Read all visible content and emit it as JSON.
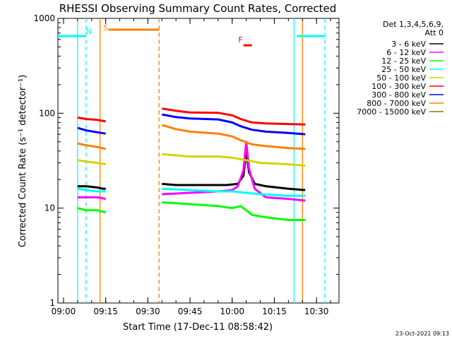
{
  "chart_data": {
    "type": "line",
    "title": "RHESSI Observing Summary Count Rates, Corrected",
    "xlabel": "Start Time (17-Dec-11 08:58:42)",
    "ylabel": "Corrected Count Rate (s⁻¹ detector⁻¹)",
    "yscale": "log",
    "xlim": [
      "08:58",
      "10:38"
    ],
    "ylim": [
      1,
      1000
    ],
    "x_ticks": [
      "09:00",
      "09:15",
      "09:30",
      "09:45",
      "10:00",
      "10:15",
      "10:30"
    ],
    "y_ticks": [
      {
        "value": 1,
        "label": "1"
      },
      {
        "value": 10,
        "label": "10"
      },
      {
        "value": 100,
        "label": "100"
      },
      {
        "value": 1000,
        "label": "1000"
      }
    ],
    "legend_header": [
      "Det 1,3,4,5,6,9,",
      "Att 0"
    ],
    "legend_position": "right",
    "series": [
      {
        "name": "3 - 6 keV",
        "color": "#000000",
        "segments": [
          {
            "x": [
              "09:05",
              "09:08",
              "09:12",
              "09:14",
              "09:15"
            ],
            "y": [
              17,
              17,
              16.5,
              16,
              16
            ]
          },
          {
            "x": [
              "09:35",
              "09:40",
              "09:50",
              "09:58",
              "10:02",
              "10:04",
              "10:05",
              "10:06",
              "10:08",
              "10:12",
              "10:20",
              "10:26"
            ],
            "y": [
              18,
              17.5,
              17.5,
              17.5,
              18,
              22,
              40,
              24,
              18,
              17,
              16,
              15.5
            ]
          }
        ]
      },
      {
        "name": "6 - 12 keV",
        "color": "#ff00ff",
        "segments": [
          {
            "x": [
              "09:05",
              "09:08",
              "09:12",
              "09:15"
            ],
            "y": [
              13,
              13,
              13,
              12.5
            ]
          },
          {
            "x": [
              "09:35",
              "09:45",
              "09:55",
              "10:00",
              "10:02",
              "10:04",
              "10:05",
              "10:06",
              "10:08",
              "10:12",
              "10:20",
              "10:26"
            ],
            "y": [
              14,
              14.5,
              15,
              15.5,
              17,
              25,
              50,
              26,
              16,
              13,
              12.5,
              12
            ]
          }
        ]
      },
      {
        "name": "12 - 25 keV",
        "color": "#00ff00",
        "segments": [
          {
            "x": [
              "09:05",
              "09:08",
              "09:12",
              "09:15"
            ],
            "y": [
              10,
              9.5,
              9.5,
              9
            ]
          },
          {
            "x": [
              "09:35",
              "09:45",
              "09:55",
              "10:00",
              "10:03",
              "10:05",
              "10:07",
              "10:12",
              "10:20",
              "10:26"
            ],
            "y": [
              11.5,
              11,
              10.5,
              10,
              10.5,
              9.5,
              8.5,
              8,
              7.5,
              7.5
            ]
          }
        ]
      },
      {
        "name": "25 - 50 keV",
        "color": "#00ffff",
        "segments": [
          {
            "x": [
              "09:05",
              "09:08",
              "09:12",
              "09:15"
            ],
            "y": [
              16,
              15.5,
              15,
              15
            ]
          },
          {
            "x": [
              "09:35",
              "09:45",
              "09:55",
              "10:00",
              "10:05",
              "10:10",
              "10:20",
              "10:26"
            ],
            "y": [
              16,
              15.5,
              15,
              15,
              14.5,
              14,
              13.5,
              13.5
            ]
          }
        ]
      },
      {
        "name": "50 - 100 keV",
        "color": "#d4d400",
        "segments": [
          {
            "x": [
              "09:05",
              "09:08",
              "09:12",
              "09:15"
            ],
            "y": [
              32,
              31,
              30,
              29
            ]
          },
          {
            "x": [
              "09:35",
              "09:45",
              "09:55",
              "10:00",
              "10:05",
              "10:10",
              "10:20",
              "10:26"
            ],
            "y": [
              37,
              35,
              35,
              34,
              32,
              30,
              29,
              28
            ]
          }
        ]
      },
      {
        "name": "100 - 300 keV",
        "color": "#ff0000",
        "segments": [
          {
            "x": [
              "09:05",
              "09:08",
              "09:12",
              "09:15"
            ],
            "y": [
              90,
              87,
              85,
              82
            ]
          },
          {
            "x": [
              "09:35",
              "09:40",
              "09:45",
              "09:55",
              "10:00",
              "10:03",
              "10:07",
              "10:12",
              "10:20",
              "10:26"
            ],
            "y": [
              112,
              106,
              102,
              101,
              95,
              87,
              80,
              78,
              77,
              76
            ]
          }
        ]
      },
      {
        "name": "300 - 800 keV",
        "color": "#0000ff",
        "segments": [
          {
            "x": [
              "09:05",
              "09:08",
              "09:12",
              "09:15"
            ],
            "y": [
              70,
              66,
              63,
              61
            ]
          },
          {
            "x": [
              "09:35",
              "09:40",
              "09:45",
              "09:55",
              "10:00",
              "10:03",
              "10:07",
              "10:12",
              "10:20",
              "10:26"
            ],
            "y": [
              97,
              91,
              88,
              86,
              80,
              73,
              67,
              64,
              62,
              60
            ]
          }
        ]
      },
      {
        "name": "800 - 7000 keV",
        "color": "#ff8000",
        "segments": [
          {
            "x": [
              "09:05",
              "09:08",
              "09:12",
              "09:15"
            ],
            "y": [
              48,
              46,
              44,
              42
            ]
          },
          {
            "x": [
              "09:35",
              "09:40",
              "09:45",
              "09:55",
              "10:00",
              "10:03",
              "10:07",
              "10:12",
              "10:20",
              "10:26"
            ],
            "y": [
              75,
              68,
              64,
              61,
              57,
              52,
              47,
              45,
              43,
              42
            ]
          }
        ]
      },
      {
        "name": "7000 - 15000 keV",
        "color": "#808000",
        "segments": []
      }
    ],
    "annotations": [
      {
        "text": "N",
        "x": "09:09",
        "color": "#00ffff"
      },
      {
        "text": "S",
        "x": "09:15",
        "color": "#ff8000"
      },
      {
        "text": "F",
        "x": "10:03",
        "color": "#ff0000"
      }
    ],
    "flag_bars": [
      {
        "kind": "N",
        "color": "#00ffff",
        "x": [
          "08:58",
          "09:08"
        ],
        "level": 650
      },
      {
        "kind": "N",
        "color": "#00ffff",
        "x": [
          "10:23",
          "10:33"
        ],
        "level": 650
      },
      {
        "kind": "S",
        "color": "#ff8000",
        "x": [
          "09:16",
          "09:34"
        ],
        "level": 760
      },
      {
        "kind": "F",
        "color": "#ff0000",
        "x": [
          "10:04",
          "10:07"
        ],
        "level": 520
      }
    ],
    "vertical_markers": [
      {
        "x": "09:05",
        "color": "#00ffff",
        "style": "solid"
      },
      {
        "x": "09:08",
        "color": "#00ffff",
        "style": "dashed"
      },
      {
        "x": "09:13",
        "color": "#ff8000",
        "style": "solid"
      },
      {
        "x": "09:34",
        "color": "#ff8000",
        "style": "dashed"
      },
      {
        "x": "10:22",
        "color": "#00ffff",
        "style": "solid"
      },
      {
        "x": "10:25",
        "color": "#ff8000",
        "style": "solid"
      },
      {
        "x": "10:33",
        "color": "#00ffff",
        "style": "dashed"
      }
    ],
    "grid": false
  },
  "footer": {
    "date_stamp": "23-Oct-2021 09:13"
  }
}
